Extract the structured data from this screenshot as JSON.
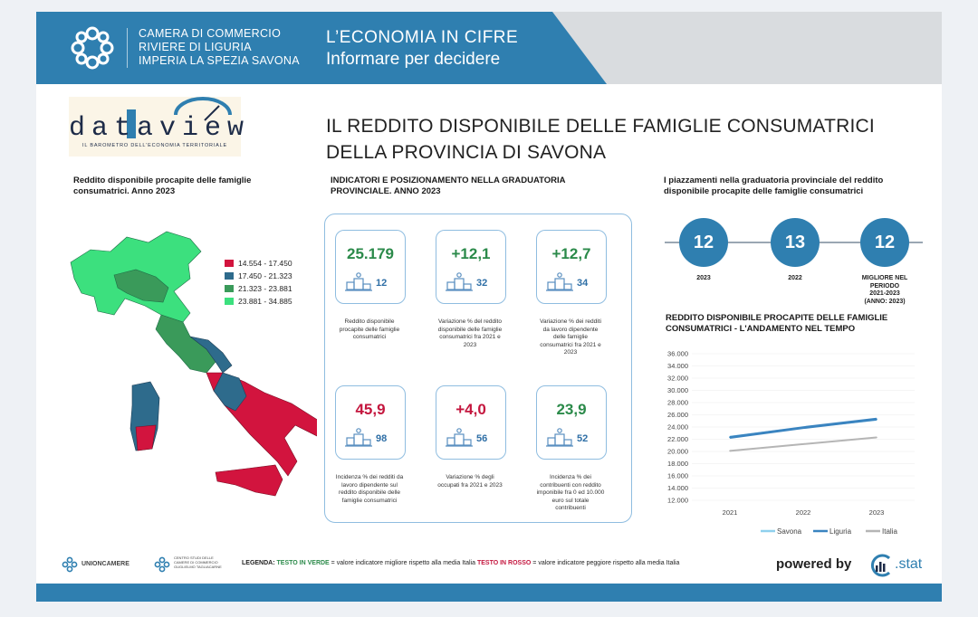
{
  "header": {
    "org_line1": "CAMERA DI COMMERCIO",
    "org_line2": "RIVIERE DI LIGURIA",
    "org_line3": "IMPERIA LA SPEZIA SAVONA",
    "slogan1": "L’ECONOMIA  IN  CIFRE",
    "slogan2": "Informare per decidere"
  },
  "brand": {
    "name": "dataview",
    "tagline": "IL BAROMETRO DELL'ECONOMIA TERRITORIALE"
  },
  "title": {
    "line1": "IL REDDITO DISPONIBILE DELLE FAMIGLIE CONSUMATRICI",
    "line2": "DELLA PROVINCIA DI SAVONA"
  },
  "map": {
    "title_line1": "Reddito disponibile procapite delle famiglie",
    "title_line2": "consumatrici. Anno 2023",
    "legend": [
      {
        "label": "14.554 - 17.450",
        "color": "#d2143e"
      },
      {
        "label": "17.450 - 21.323",
        "color": "#2e6b8c"
      },
      {
        "label": "21.323 - 23.881",
        "color": "#3a9a5a"
      },
      {
        "label": "23.881 - 34.885",
        "color": "#3ce07e"
      }
    ]
  },
  "indicators": {
    "title_line1": "INDICATORI E POSIZIONAMENTO NELLA GRADUATORIA",
    "title_line2": "PROVINCIALE. ANNO 2023",
    "items": [
      {
        "value": "25.179",
        "rank": "12",
        "tone": "green",
        "desc": [
          "Reddito disponibile",
          "procapite delle famiglie",
          "consumatrici"
        ]
      },
      {
        "value": "+12,1",
        "rank": "32",
        "tone": "green",
        "desc": [
          "Variazione % del reddito",
          "disponibile delle famiglie",
          "consumatrici fra 2021 e",
          "2023"
        ]
      },
      {
        "value": "+12,7",
        "rank": "34",
        "tone": "green",
        "desc": [
          "Variazione % dei redditi",
          "da lavoro dipendente",
          "delle famiglie",
          "consumatrici fra 2021 e",
          "2023"
        ]
      },
      {
        "value": "45,9",
        "rank": "98",
        "tone": "red",
        "desc": [
          "Incidenza % dei redditi da",
          "lavoro dipendente sul",
          "reddito disponibile delle",
          "famiglie consumatrici"
        ]
      },
      {
        "value": "+4,0",
        "rank": "56",
        "tone": "red",
        "desc": [
          "Variazione % degli",
          "occupati fra 2021 e 2023"
        ]
      },
      {
        "value": "23,9",
        "rank": "52",
        "tone": "green",
        "desc": [
          "Incidenza % dei",
          "contribuenti con reddito",
          "imponibile fra 0 ed 10.000",
          "euro sul totale",
          "contribuenti"
        ]
      }
    ]
  },
  "ranking": {
    "title_line1": "I piazzamenti nella graduatoria provinciale del reddito",
    "title_line2": "disponibile procapite delle famiglie consumatrici",
    "items": [
      {
        "value": "12",
        "label": [
          "2023"
        ]
      },
      {
        "value": "13",
        "label": [
          "2022"
        ]
      },
      {
        "value": "12",
        "label": [
          "MIGLIORE NEL",
          "PERIODO",
          "2021-2023",
          "(ANNO: 2023)"
        ]
      }
    ]
  },
  "chart_data": {
    "type": "line",
    "title": "REDDITO DISPONIBILE PROCAPITE DELLE FAMIGLIE CONSUMATRICI - L'ANDAMENTO NEL TEMPO",
    "title_line1": "REDDITO DISPONIBILE PROCAPITE DELLE FAMIGLIE",
    "title_line2": "CONSUMATRICI - L'ANDAMENTO NEL TEMPO",
    "categories": [
      "2021",
      "2022",
      "2023"
    ],
    "yticks": [
      "12.000",
      "14.000",
      "16.000",
      "18.000",
      "20.000",
      "22.000",
      "24.000",
      "26.000",
      "28.000",
      "30.000",
      "32.000",
      "34.000",
      "36.000"
    ],
    "ylim": [
      12000,
      36000
    ],
    "series": [
      {
        "name": "Savona",
        "color": "#8fd0ee",
        "values": [
          22400,
          23900,
          25179
        ]
      },
      {
        "name": "Liguria",
        "color": "#3a84c0",
        "values": [
          22300,
          23900,
          25300
        ]
      },
      {
        "name": "Italia",
        "color": "#b5b5b5",
        "values": [
          20100,
          21200,
          22300
        ]
      }
    ],
    "legend_position": "bottom"
  },
  "footer": {
    "unioncamere": "UNIONCAMERE",
    "tagliacarne_line1": "CENTRO STUDI DELLE",
    "tagliacarne_line2": "CAMERE DI COMMERCIO",
    "tagliacarne_line3": "GUGLIELMO TAGLIACARNE",
    "legend_label": "LEGENDA:",
    "green_label": "TESTO IN VERDE",
    "green_text": " = valore indicatore migliore rispetto alla media Italia ",
    "red_label": "TESTO IN ROSSO",
    "red_text": " = valore indicatore peggiore rispetto alla media Italia",
    "powered": "powered by",
    "stat": ".stat"
  }
}
